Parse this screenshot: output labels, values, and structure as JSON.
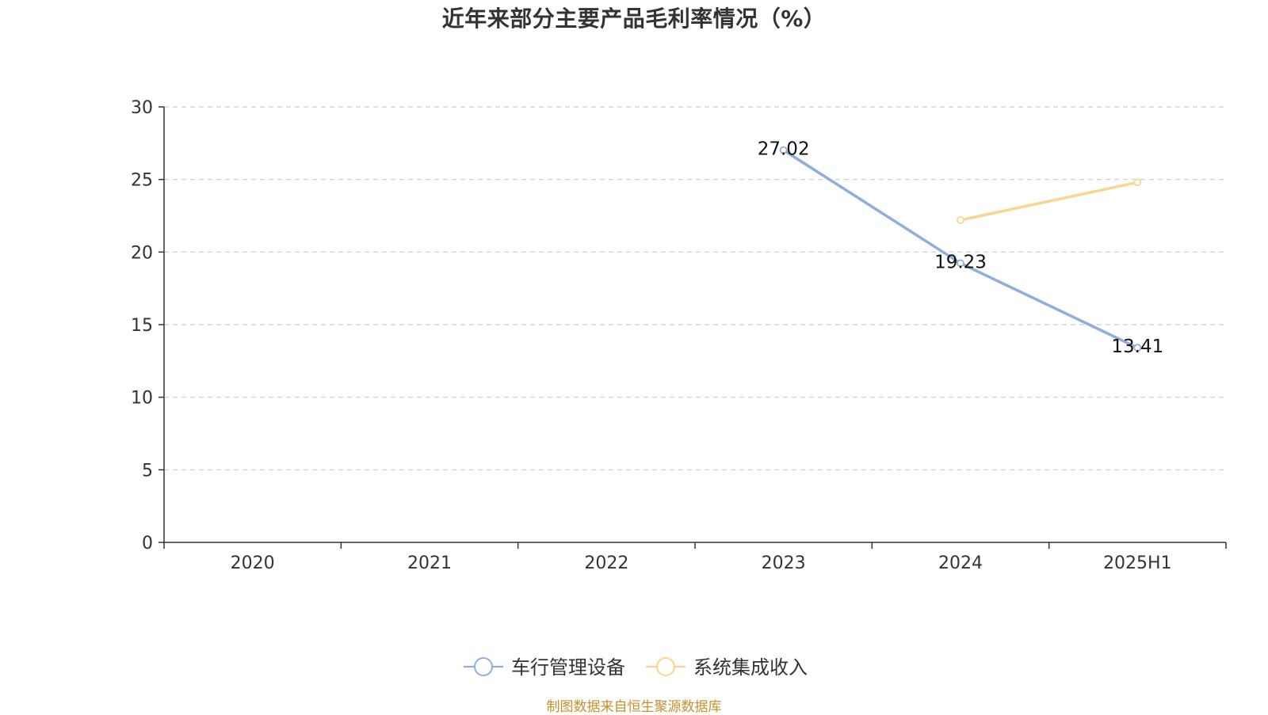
{
  "chart_data": {
    "type": "line",
    "title": "近年来部分主要产品毛利率情况（%）",
    "categories": [
      "2020",
      "2021",
      "2022",
      "2023",
      "2024",
      "2025H1"
    ],
    "ylim": [
      0,
      30
    ],
    "yticks": [
      0,
      5,
      10,
      15,
      20,
      25,
      30
    ],
    "grid": true,
    "legend_position": "bottom-center",
    "series": [
      {
        "name": "车行管理设备",
        "color": "#8eaedb",
        "values": [
          null,
          null,
          null,
          27.02,
          19.23,
          13.41
        ],
        "labels": [
          null,
          null,
          null,
          "27.02",
          "19.23",
          "13.41"
        ]
      },
      {
        "name": "系统集成收入",
        "color": "#fbd58f",
        "values": [
          null,
          null,
          null,
          null,
          22.2,
          24.8
        ],
        "labels": [
          null,
          null,
          null,
          null,
          null,
          null
        ]
      }
    ]
  },
  "source_note": "制图数据来自恒生聚源数据库"
}
